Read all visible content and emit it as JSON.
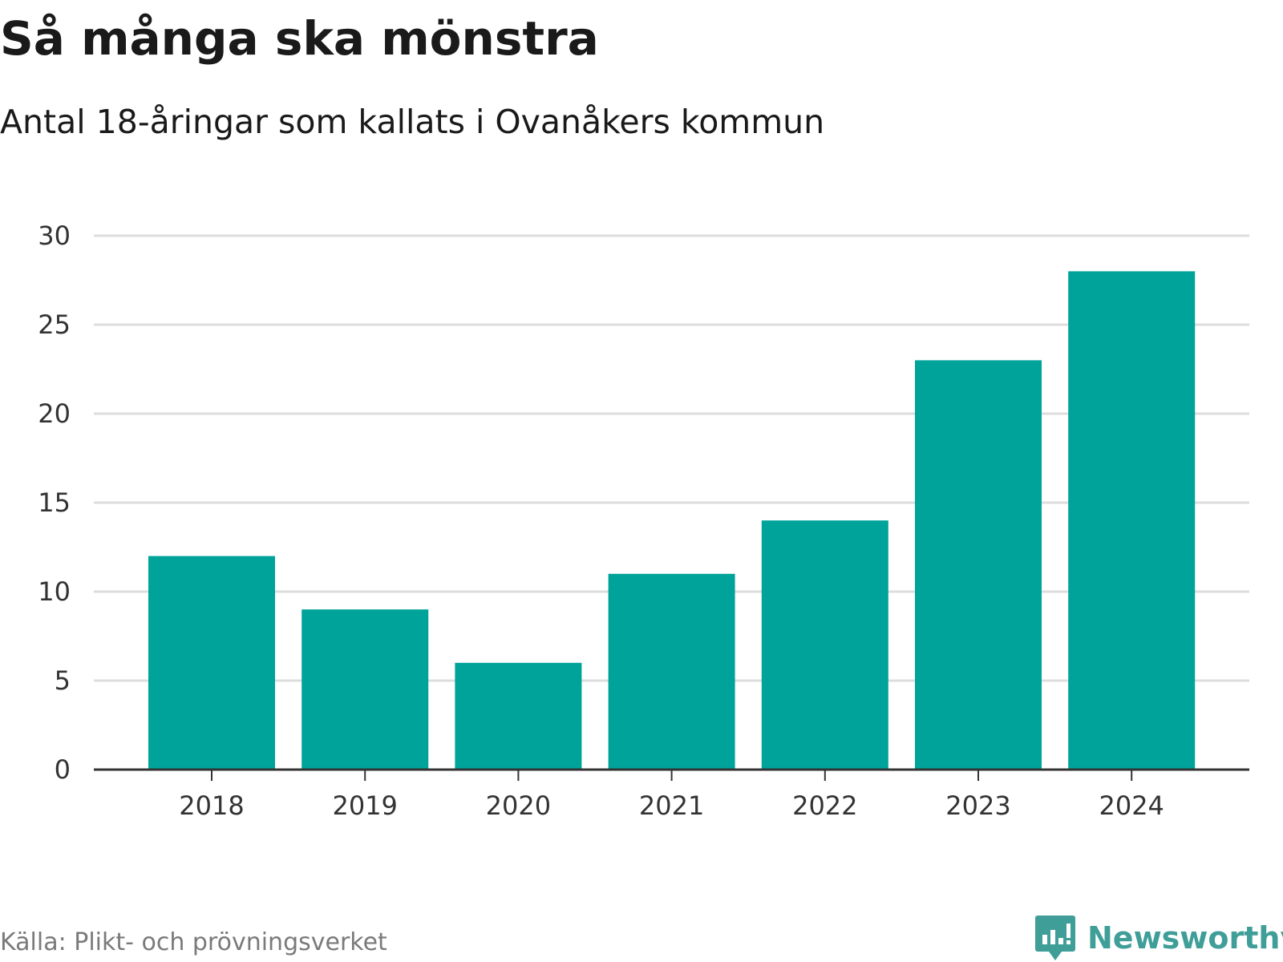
{
  "header": {
    "title": "Så många ska mönstra",
    "subtitle": "Antal 18-åringar som kallats i Ovanåkers kommun"
  },
  "footer": {
    "source": "Källa: Plikt- och prövningsverket",
    "brand": "Newsworthy",
    "brand_icon": "newsworthy-logo-icon"
  },
  "colors": {
    "bar": "#00a39a",
    "grid": "#dddddd",
    "axis": "#333333",
    "brand": "#3f9e98"
  },
  "chart_data": {
    "type": "bar",
    "title": "Så många ska mönstra",
    "subtitle": "Antal 18-åringar som kallats i Ovanåkers kommun",
    "categories": [
      "2018",
      "2019",
      "2020",
      "2021",
      "2022",
      "2023",
      "2024"
    ],
    "values": [
      12,
      9,
      6,
      11,
      14,
      23,
      28
    ],
    "xlabel": "",
    "ylabel": "",
    "ylim": [
      0,
      30
    ],
    "yticks": [
      0,
      5,
      10,
      15,
      20,
      25,
      30
    ],
    "grid": true,
    "legend": "none"
  }
}
